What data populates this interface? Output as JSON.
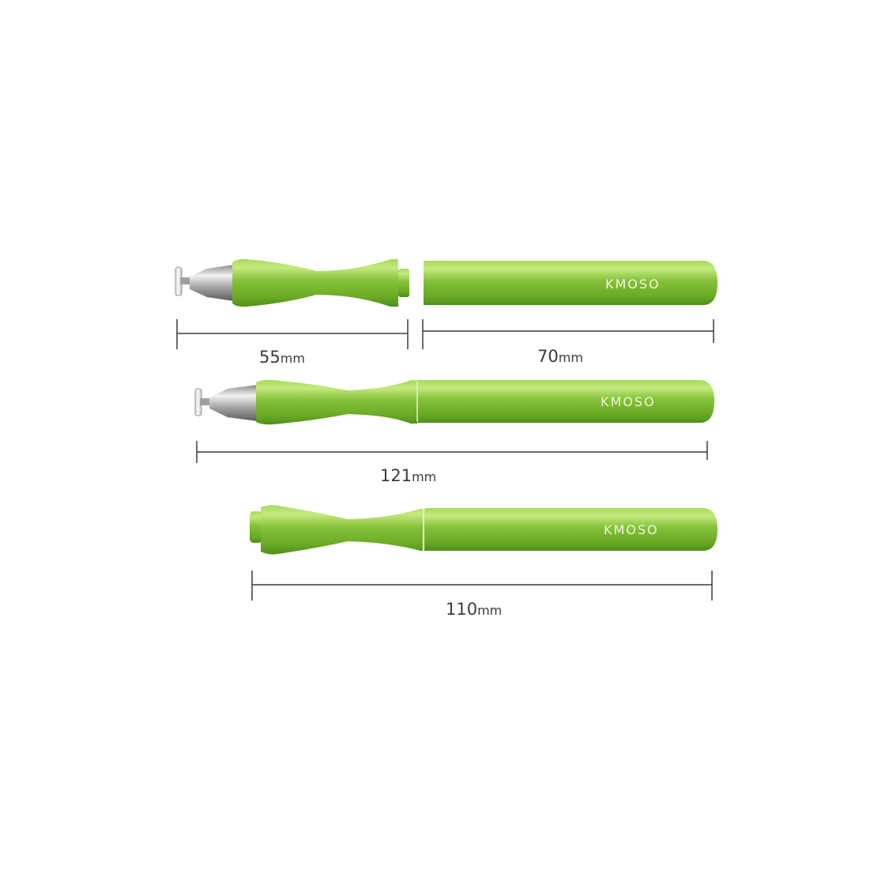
{
  "brand": "KMOSO",
  "colors": {
    "body_green": "#7fbf2f",
    "body_highlight": "#c3ea7e",
    "body_shadow": "#4f8f18",
    "metal": "#b9b9b9",
    "dimension_line": "#3b3b3b"
  },
  "dimensions": [
    {
      "id": "front_section",
      "value": "55",
      "unit": "mm"
    },
    {
      "id": "cap_section",
      "value": "70",
      "unit": "mm"
    },
    {
      "id": "assembled_open",
      "value": "121",
      "unit": "mm"
    },
    {
      "id": "assembled_closed",
      "value": "110",
      "unit": "mm"
    }
  ]
}
